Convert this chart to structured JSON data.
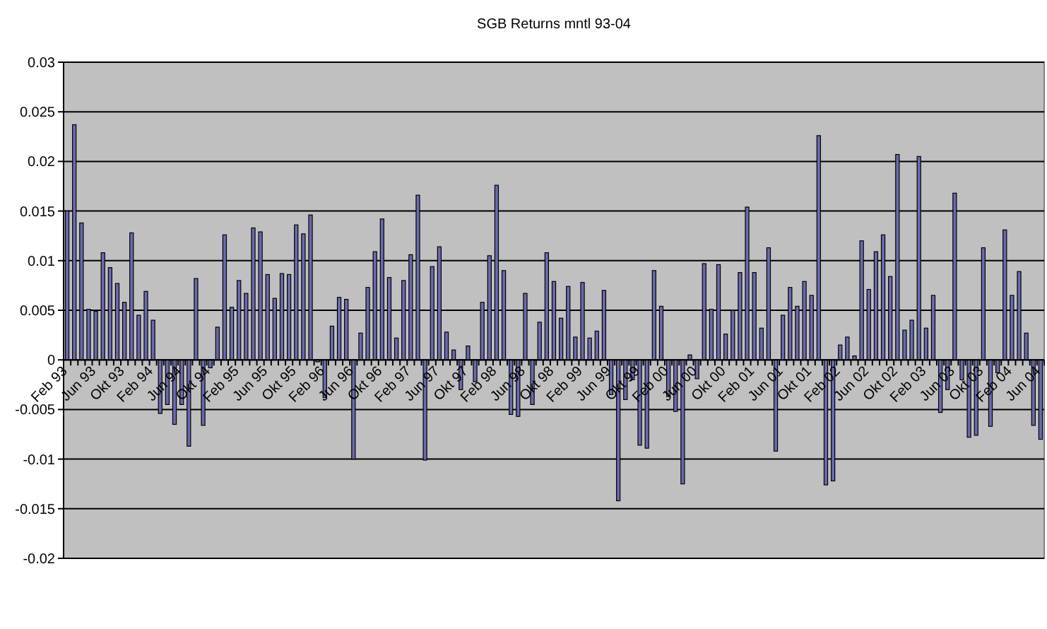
{
  "chart_data": {
    "type": "bar",
    "title": "SGB Returns mntl 93-04",
    "categories": [
      "Feb 93",
      null,
      null,
      null,
      "Jun 93",
      null,
      null,
      null,
      "Okt 93",
      null,
      null,
      null,
      "Feb 94",
      null,
      null,
      null,
      "Jun 94",
      null,
      null,
      null,
      "Okt 94",
      null,
      null,
      null,
      "Feb 95",
      null,
      null,
      null,
      "Jun 95",
      null,
      null,
      null,
      "Okt 95",
      null,
      null,
      null,
      "Feb 96",
      null,
      null,
      null,
      "Jun 96",
      null,
      null,
      null,
      "Okt 96",
      null,
      null,
      null,
      "Feb 97",
      null,
      null,
      null,
      "Jun 97",
      null,
      null,
      null,
      "Okt 97",
      null,
      null,
      null,
      "Feb 98",
      null,
      null,
      null,
      "Jun 98",
      null,
      null,
      null,
      "Okt 98",
      null,
      null,
      null,
      "Feb 99",
      null,
      null,
      null,
      "Jun 99",
      null,
      null,
      null,
      "Okt 99",
      null,
      null,
      null,
      "Feb 00",
      null,
      null,
      null,
      "Jun 00",
      null,
      null,
      null,
      "Okt 00",
      null,
      null,
      null,
      "Feb 01",
      null,
      null,
      null,
      "Jun 01",
      null,
      null,
      null,
      "Okt 01",
      null,
      null,
      null,
      "Feb 02",
      null,
      null,
      null,
      "Jun 02",
      null,
      null,
      null,
      "Okt 02",
      null,
      null,
      null,
      "Feb 03",
      null,
      null,
      null,
      "Jun 03",
      null,
      null,
      null,
      "Okt 03",
      null,
      null,
      null,
      "Feb 04",
      null,
      null,
      null,
      "Jun 04"
    ],
    "values": [
      0.015,
      0.0237,
      0.0138,
      0.0051,
      0.0049,
      0.0108,
      0.0093,
      0.0077,
      0.0058,
      0.0128,
      0.0045,
      0.0069,
      0.004,
      -0.0054,
      -0.0045,
      -0.0065,
      -0.0045,
      -0.0087,
      0.0082,
      -0.0066,
      -0.0008,
      0.0033,
      0.0126,
      0.0053,
      0.008,
      0.0067,
      0.0133,
      0.0129,
      0.0086,
      0.0062,
      0.0087,
      0.0086,
      0.0136,
      0.0127,
      0.0146,
      -0.0002,
      -0.0038,
      0.0034,
      0.0063,
      0.0061,
      -0.01,
      0.0027,
      0.0073,
      0.0109,
      0.0142,
      0.0083,
      0.0022,
      0.008,
      0.0106,
      0.0166,
      -0.0101,
      0.0094,
      0.0114,
      0.0028,
      0.001,
      -0.003,
      0.0014,
      -0.0022,
      0.0058,
      0.0105,
      0.0176,
      0.009,
      -0.0055,
      -0.0057,
      0.0067,
      -0.0045,
      0.0038,
      0.0108,
      0.0079,
      0.0042,
      0.0074,
      0.0023,
      0.0078,
      0.0022,
      0.0029,
      0.007,
      -0.0035,
      -0.0142,
      -0.004,
      -0.002,
      -0.0086,
      -0.0089,
      0.009,
      0.0054,
      -0.0037,
      -0.0052,
      -0.0125,
      0.0005,
      -0.0019,
      0.0097,
      0.0051,
      0.0096,
      0.0026,
      0.005,
      0.0088,
      0.0154,
      0.0088,
      0.0032,
      0.0113,
      -0.0092,
      0.0045,
      0.0073,
      0.0054,
      0.0079,
      0.0065,
      0.0226,
      -0.0126,
      -0.0122,
      0.0015,
      0.0023,
      0.0004,
      0.012,
      0.0071,
      0.0109,
      0.0126,
      0.0084,
      0.0207,
      0.003,
      0.004,
      0.0205,
      0.0032,
      0.0065,
      -0.0053,
      -0.003,
      0.0168,
      -0.002,
      -0.0078,
      -0.0076,
      0.0113,
      -0.0067,
      -0.0013,
      0.0131,
      0.0065,
      0.0089,
      0.0027,
      -0.0066,
      -0.008
    ],
    "color": "#6a6ab0",
    "ylim": [
      -0.02,
      0.03
    ],
    "yticks": [
      -0.02,
      -0.015,
      -0.01,
      -0.005,
      0,
      0.005,
      0.01,
      0.015,
      0.02,
      0.025,
      0.03
    ],
    "grid": "y"
  }
}
